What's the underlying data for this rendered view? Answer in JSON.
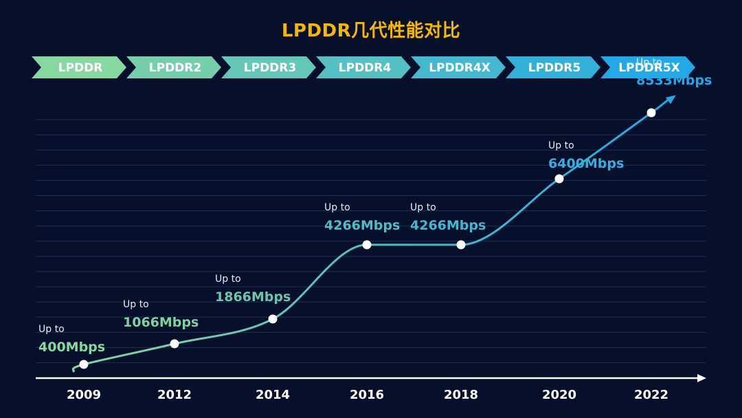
{
  "title": "LPDDR几代性能对比",
  "colors": {
    "background": "#07102a",
    "title": "#f5b800",
    "grid": "#1c3050",
    "axis": "#ffffff",
    "gen_start": "#86d7a0",
    "gen_end": "#22a8e6"
  },
  "generations": [
    "LPDDR",
    "LPDDR2",
    "LPDDR3",
    "LPDDR4",
    "LPDDR4X",
    "LPDDR5",
    "LPDDR5X"
  ],
  "chart_data": {
    "type": "line",
    "title": "LPDDR几代性能对比",
    "x": [
      "2009",
      "2012",
      "2014",
      "2016",
      "2018",
      "2020",
      "2022"
    ],
    "series": [
      {
        "name": "LPDDR",
        "values": [
          400,
          1066,
          1866,
          4266,
          4266,
          6400,
          8533
        ]
      }
    ],
    "label_prefix": "Up to",
    "labels": [
      "400Mbps",
      "1066Mbps",
      "1866Mbps",
      "4266Mbps",
      "4266Mbps",
      "6400Mbps",
      "8533Mbps"
    ],
    "label_colors": [
      "#86d7a0",
      "#7fd1a2",
      "#6cc6ab",
      "#4fbcc6",
      "#47b6cc",
      "#35aee0",
      "#22a8e6"
    ],
    "xlabel": "",
    "ylabel": "",
    "ylim": [
      0,
      9000
    ],
    "grid": true,
    "legend": "none"
  }
}
